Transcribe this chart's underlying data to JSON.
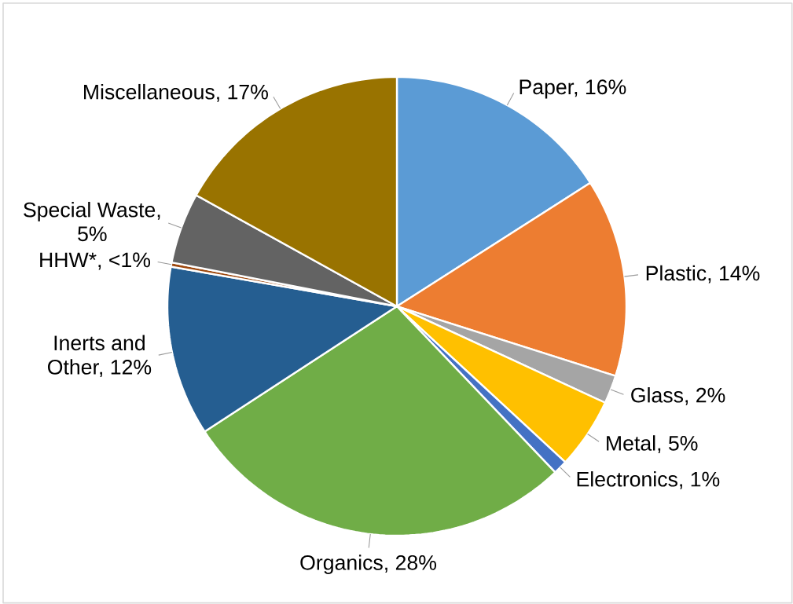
{
  "chart_data": {
    "type": "pie",
    "categories": [
      "Paper, 16%",
      "Plastic, 14%",
      "Glass, 2%",
      "Metal, 5%",
      "Electronics, 1%",
      "Organics, 28%",
      "Inerts and Other, 12%",
      "HHW*, <1%",
      "Special Waste, 5%",
      "Miscellaneous, 17%"
    ],
    "values": [
      16,
      14,
      2,
      5,
      1,
      28,
      12,
      0.3,
      5,
      17
    ],
    "colors": [
      "#5b9bd5",
      "#ed7d31",
      "#a5a5a5",
      "#ffc000",
      "#4472c4",
      "#70ad47",
      "#255e91",
      "#9e480e",
      "#636363",
      "#997300"
    ]
  }
}
